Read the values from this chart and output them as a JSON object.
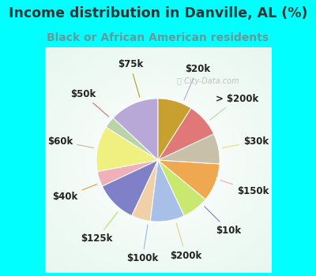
{
  "title": "Income distribution in Danville, AL (%)",
  "subtitle": "Black or African American residents",
  "bg_cyan": "#00FFFF",
  "bg_chart": "#e0f5ee",
  "watermark": "City-Data.com",
  "labels": [
    "$20k",
    "> $200k",
    "$30k",
    "$150k",
    "$10k",
    "$200k",
    "$100k",
    "$125k",
    "$40k",
    "$60k",
    "$50k",
    "$75k"
  ],
  "values": [
    13,
    3,
    12,
    4,
    11,
    5,
    9,
    7,
    10,
    8,
    9,
    9
  ],
  "colors": [
    "#b8a8d8",
    "#b8d4a8",
    "#f0f080",
    "#f0b0b8",
    "#8080c8",
    "#f0d0a8",
    "#a8c0e8",
    "#c8e870",
    "#f0a850",
    "#c8c0a8",
    "#e07878",
    "#c8a030"
  ],
  "line_colors": [
    "#b8a8d8",
    "#b8d4a8",
    "#e8e070",
    "#f0a8b0",
    "#8080c8",
    "#e8c890",
    "#a0b8e0",
    "#b8e060",
    "#e89840",
    "#c0b898",
    "#d86868",
    "#c09820"
  ],
  "title_color": "#333333",
  "subtitle_color": "#669999",
  "label_fontsize": 8.5,
  "title_fontsize": 12.5,
  "subtitle_fontsize": 10,
  "figsize": [
    4.0,
    3.5
  ],
  "dpi": 100
}
